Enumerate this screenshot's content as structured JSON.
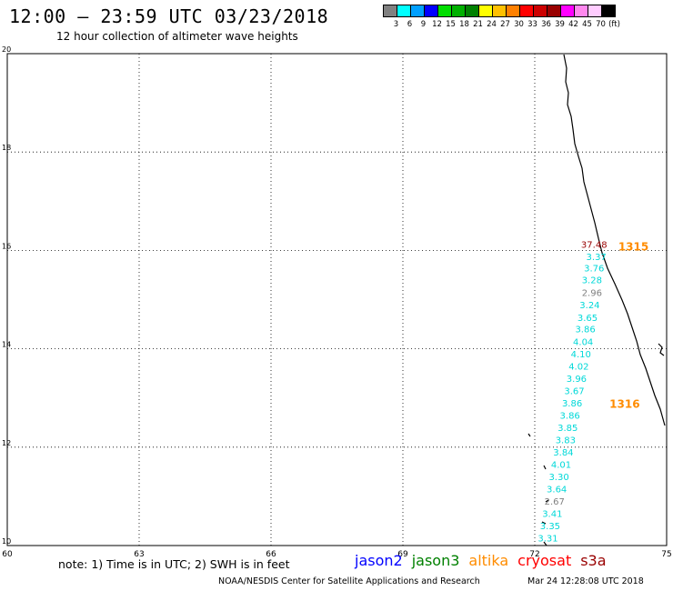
{
  "header": {
    "title": "12:00 – 23:59 UTC 03/23/2018",
    "subtitle": "12 hour collection of altimeter wave heights"
  },
  "colorbar": {
    "swatches": [
      "#808080",
      "#00ffff",
      "#00a0ff",
      "#0000ff",
      "#00dd00",
      "#00b000",
      "#008000",
      "#ffff00",
      "#ffc000",
      "#ff8000",
      "#ff0000",
      "#cc0000",
      "#990000",
      "#ff00ff",
      "#ff88ee",
      "#ffccff",
      "#000000"
    ],
    "labels": [
      "3",
      "6",
      "9",
      "12",
      "15",
      "18",
      "21",
      "24",
      "27",
      "30",
      "33",
      "36",
      "39",
      "42",
      "45",
      "70",
      "(ft)"
    ]
  },
  "axes": {
    "x_ticks": [
      "60",
      "63",
      "66",
      "69",
      "72",
      "75"
    ],
    "y_ticks": [
      "10",
      "12",
      "14",
      "16",
      "18",
      "20"
    ],
    "x_range": [
      60,
      75
    ],
    "y_range": [
      10,
      20
    ],
    "grid": true
  },
  "passes": [
    {
      "label": "1315",
      "color": "#ff8c00",
      "lon": 73.9,
      "lat": 16.0
    },
    {
      "label": "1316",
      "color": "#ff8c00",
      "lon": 73.7,
      "lat": 12.8
    }
  ],
  "chart_data": {
    "type": "scatter",
    "x_range": [
      60,
      75
    ],
    "y_range": [
      10,
      20
    ],
    "points": [
      {
        "lon": 73.35,
        "lat": 16.05,
        "v": "37.48",
        "c": "#990000"
      },
      {
        "lon": 73.4,
        "lat": 15.8,
        "v": "3.37",
        "c": "#00d8d8"
      },
      {
        "lon": 73.35,
        "lat": 15.57,
        "v": "3.76",
        "c": "#00d8d8"
      },
      {
        "lon": 73.3,
        "lat": 15.33,
        "v": "3.28",
        "c": "#00d8d8"
      },
      {
        "lon": 73.3,
        "lat": 15.07,
        "v": "2.96",
        "c": "#808080"
      },
      {
        "lon": 73.25,
        "lat": 14.82,
        "v": "3.24",
        "c": "#00d8d8"
      },
      {
        "lon": 73.2,
        "lat": 14.57,
        "v": "3.65",
        "c": "#00d8d8"
      },
      {
        "lon": 73.15,
        "lat": 14.33,
        "v": "3.86",
        "c": "#00d8d8"
      },
      {
        "lon": 73.1,
        "lat": 14.08,
        "v": "4.04",
        "c": "#00d8d8"
      },
      {
        "lon": 73.05,
        "lat": 13.83,
        "v": "4.10",
        "c": "#00d8d8"
      },
      {
        "lon": 73.0,
        "lat": 13.58,
        "v": "4.02",
        "c": "#00d8d8"
      },
      {
        "lon": 72.95,
        "lat": 13.33,
        "v": "3.96",
        "c": "#00d8d8"
      },
      {
        "lon": 72.9,
        "lat": 13.08,
        "v": "3.67",
        "c": "#00d8d8"
      },
      {
        "lon": 72.85,
        "lat": 12.83,
        "v": "3.86",
        "c": "#00d8d8"
      },
      {
        "lon": 72.8,
        "lat": 12.58,
        "v": "3.86",
        "c": "#00d8d8"
      },
      {
        "lon": 72.75,
        "lat": 12.33,
        "v": "3.85",
        "c": "#00d8d8"
      },
      {
        "lon": 72.7,
        "lat": 12.08,
        "v": "3.83",
        "c": "#00d8d8"
      },
      {
        "lon": 72.65,
        "lat": 11.83,
        "v": "3.84",
        "c": "#00d8d8"
      },
      {
        "lon": 72.6,
        "lat": 11.58,
        "v": "4.01",
        "c": "#00d8d8"
      },
      {
        "lon": 72.55,
        "lat": 11.33,
        "v": "3.30",
        "c": "#00d8d8"
      },
      {
        "lon": 72.5,
        "lat": 11.08,
        "v": "3.64",
        "c": "#00d8d8"
      },
      {
        "lon": 72.45,
        "lat": 10.83,
        "v": "2.67",
        "c": "#808080"
      },
      {
        "lon": 72.4,
        "lat": 10.58,
        "v": "3.41",
        "c": "#00d8d8"
      },
      {
        "lon": 72.35,
        "lat": 10.33,
        "v": "3.35",
        "c": "#00d8d8"
      },
      {
        "lon": 72.3,
        "lat": 10.08,
        "v": "3.31",
        "c": "#00d8d8"
      }
    ]
  },
  "footer": {
    "note": "note: 1) Time is in UTC; 2) SWH is in feet",
    "satellites": [
      {
        "name": "jason2",
        "color": "#0000ff"
      },
      {
        "name": "jason3",
        "color": "#008000"
      },
      {
        "name": "altika",
        "color": "#ff8c00"
      },
      {
        "name": "cryosat",
        "color": "#ff0000"
      },
      {
        "name": "s3a",
        "color": "#990000"
      }
    ],
    "credit": "NOAA/NESDIS Center for Satellite Applications and Research",
    "timestamp": "Mar 24 12:28:08 UTC 2018"
  }
}
